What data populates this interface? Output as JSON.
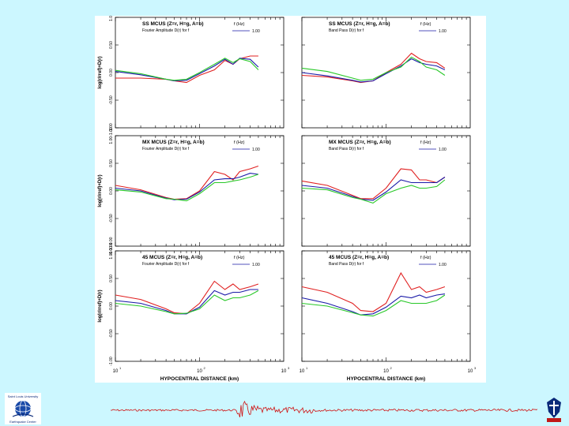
{
  "colors": {
    "background": "#ccf7ff",
    "red": "#e02020",
    "blue": "#1a1aa8",
    "green": "#28c828",
    "seismogram": "#d01010"
  },
  "logos": {
    "left_icon": "globe-logo-icon",
    "right_icon": "university-crest-icon",
    "left_text_top": "Saint Louis University",
    "left_text_bottom": "Earthquake Center"
  },
  "y_axis_label": "log(r/rref)+D(r)",
  "x_axis": {
    "label": "HYPOCENTRAL DISTANCE (km)",
    "tick_labels": [
      "10",
      "10",
      "10"
    ],
    "tick_exponents": [
      "1",
      "2",
      "3"
    ],
    "scale": "log",
    "range": [
      10,
      1000
    ]
  },
  "y_tick_labels": {
    "top": [
      "1.00",
      "0.50",
      "0.00",
      "-0.50",
      "-1.00"
    ],
    "middle": [
      "1.00-1.00",
      "0.50",
      "0.00",
      "-0.50",
      "-1.00-1.00"
    ],
    "bottom": [
      "1.00-1.00",
      "0.50",
      "0.00",
      "-0.50",
      "-1.00"
    ]
  },
  "panels": [
    {
      "title": "SS MCUS (Z=r, H=g, A=b)",
      "subtitle": "Fourier Amplitude D(r) for f",
      "legend_title": "f (Hz)",
      "legend_entry": "1.00"
    },
    {
      "title": "SS MCUS (Z=r, H=g, A=b)",
      "subtitle": "Band Pass D(r) for f",
      "legend_title": "f (Hz)",
      "legend_entry": "1.00"
    },
    {
      "title": "MX MCUS (Z=r, H=g, A=b)",
      "subtitle": "Fourier Amplitude D(r) for f",
      "legend_title": "f (Hz)",
      "legend_entry": "1.00"
    },
    {
      "title": "MX MCUS (Z=r, H=g, A=b)",
      "subtitle": "Band Pass D(r) for f",
      "legend_title": "f (Hz)",
      "legend_entry": "1.00"
    },
    {
      "title": "45 MCUS (Z=r, H=g, A=b)",
      "subtitle": "Fourier Amplitude D(r) for f",
      "legend_title": "f (Hz)",
      "legend_entry": "1.00"
    },
    {
      "title": "45 MCUS (Z=r, H=g, A=b)",
      "subtitle": "Band Pass D(r) for f",
      "legend_title": "f (Hz)",
      "legend_entry": "1.00"
    }
  ],
  "chart_data": [
    {
      "type": "line",
      "panel": "SS Fourier",
      "xscale": "log",
      "xlim": [
        10,
        1000
      ],
      "ylim": [
        -1.0,
        1.0
      ],
      "x": [
        10,
        20,
        40,
        50,
        70,
        100,
        150,
        200,
        250,
        300,
        400,
        500
      ],
      "series": [
        {
          "color": "red",
          "values": [
            -0.1,
            -0.1,
            -0.12,
            -0.15,
            -0.18,
            -0.05,
            0.05,
            0.22,
            0.15,
            0.25,
            0.3,
            0.3
          ]
        },
        {
          "color": "blue",
          "values": [
            0.02,
            -0.04,
            -0.12,
            -0.15,
            -0.14,
            -0.02,
            0.12,
            0.24,
            0.15,
            0.26,
            0.24,
            0.1
          ]
        },
        {
          "color": "green",
          "values": [
            0.04,
            -0.02,
            -0.12,
            -0.14,
            -0.12,
            0.0,
            0.15,
            0.26,
            0.18,
            0.25,
            0.2,
            0.05
          ]
        }
      ]
    },
    {
      "type": "line",
      "panel": "SS Band Pass",
      "xscale": "log",
      "xlim": [
        10,
        1000
      ],
      "ylim": [
        -1.0,
        1.0
      ],
      "x": [
        10,
        20,
        40,
        50,
        70,
        100,
        150,
        200,
        250,
        300,
        400,
        500
      ],
      "series": [
        {
          "color": "red",
          "values": [
            -0.05,
            -0.08,
            -0.15,
            -0.18,
            -0.15,
            0.0,
            0.15,
            0.35,
            0.25,
            0.2,
            0.18,
            0.08
          ]
        },
        {
          "color": "blue",
          "values": [
            0.0,
            -0.06,
            -0.14,
            -0.17,
            -0.15,
            -0.02,
            0.12,
            0.25,
            0.18,
            0.15,
            0.12,
            0.05
          ]
        },
        {
          "color": "green",
          "values": [
            0.08,
            0.02,
            -0.1,
            -0.14,
            -0.12,
            0.0,
            0.1,
            0.28,
            0.2,
            0.1,
            0.05,
            -0.05
          ]
        }
      ]
    },
    {
      "type": "line",
      "panel": "MX Fourier",
      "xscale": "log",
      "xlim": [
        10,
        1000
      ],
      "ylim": [
        -1.0,
        1.0
      ],
      "x": [
        10,
        20,
        40,
        50,
        70,
        100,
        150,
        200,
        250,
        300,
        400,
        500
      ],
      "series": [
        {
          "color": "red",
          "values": [
            0.1,
            0.02,
            -0.12,
            -0.15,
            -0.14,
            0.0,
            0.35,
            0.3,
            0.2,
            0.35,
            0.4,
            0.45
          ]
        },
        {
          "color": "blue",
          "values": [
            0.05,
            0.0,
            -0.13,
            -0.16,
            -0.15,
            -0.02,
            0.2,
            0.22,
            0.22,
            0.25,
            0.32,
            0.3
          ]
        },
        {
          "color": "green",
          "values": [
            0.02,
            -0.02,
            -0.14,
            -0.15,
            -0.18,
            -0.05,
            0.15,
            0.15,
            0.18,
            0.2,
            0.25,
            0.3
          ]
        }
      ]
    },
    {
      "type": "line",
      "panel": "MX Band Pass",
      "xscale": "log",
      "xlim": [
        10,
        1000
      ],
      "ylim": [
        -1.0,
        1.0
      ],
      "x": [
        10,
        20,
        40,
        50,
        70,
        100,
        150,
        200,
        250,
        300,
        400,
        500
      ],
      "series": [
        {
          "color": "red",
          "values": [
            0.18,
            0.1,
            -0.08,
            -0.14,
            -0.14,
            0.05,
            0.4,
            0.38,
            0.2,
            0.2,
            0.15,
            0.25
          ]
        },
        {
          "color": "blue",
          "values": [
            0.1,
            0.05,
            -0.1,
            -0.15,
            -0.17,
            -0.02,
            0.2,
            0.15,
            0.15,
            0.15,
            0.15,
            0.25
          ]
        },
        {
          "color": "green",
          "values": [
            0.05,
            0.02,
            -0.12,
            -0.15,
            -0.22,
            -0.05,
            0.05,
            0.1,
            0.05,
            0.05,
            0.08,
            0.2
          ]
        }
      ]
    },
    {
      "type": "line",
      "panel": "45 Fourier",
      "xscale": "log",
      "xlim": [
        10,
        1000
      ],
      "ylim": [
        -1.0,
        1.0
      ],
      "x": [
        10,
        20,
        40,
        50,
        70,
        100,
        150,
        200,
        250,
        300,
        400,
        500
      ],
      "series": [
        {
          "color": "red",
          "values": [
            0.2,
            0.12,
            -0.05,
            -0.12,
            -0.14,
            0.05,
            0.45,
            0.3,
            0.4,
            0.3,
            0.35,
            0.4
          ]
        },
        {
          "color": "blue",
          "values": [
            0.1,
            0.05,
            -0.08,
            -0.14,
            -0.14,
            -0.02,
            0.28,
            0.2,
            0.25,
            0.25,
            0.3,
            0.3
          ]
        },
        {
          "color": "green",
          "values": [
            0.05,
            0.0,
            -0.1,
            -0.14,
            -0.13,
            -0.05,
            0.2,
            0.1,
            0.15,
            0.15,
            0.2,
            0.28
          ]
        }
      ]
    },
    {
      "type": "line",
      "panel": "45 Band Pass",
      "xscale": "log",
      "xlim": [
        10,
        1000
      ],
      "ylim": [
        -1.0,
        1.0
      ],
      "x": [
        10,
        20,
        40,
        50,
        70,
        100,
        150,
        200,
        250,
        300,
        400,
        500
      ],
      "series": [
        {
          "color": "red",
          "values": [
            0.35,
            0.25,
            0.05,
            -0.08,
            -0.1,
            0.05,
            0.6,
            0.3,
            0.35,
            0.25,
            0.3,
            0.35
          ]
        },
        {
          "color": "blue",
          "values": [
            0.15,
            0.05,
            -0.1,
            -0.16,
            -0.14,
            -0.02,
            0.18,
            0.15,
            0.2,
            0.15,
            0.2,
            0.22
          ]
        },
        {
          "color": "green",
          "values": [
            0.05,
            0.0,
            -0.12,
            -0.16,
            -0.18,
            -0.08,
            0.1,
            0.05,
            0.05,
            0.05,
            0.1,
            0.2
          ]
        }
      ]
    }
  ]
}
